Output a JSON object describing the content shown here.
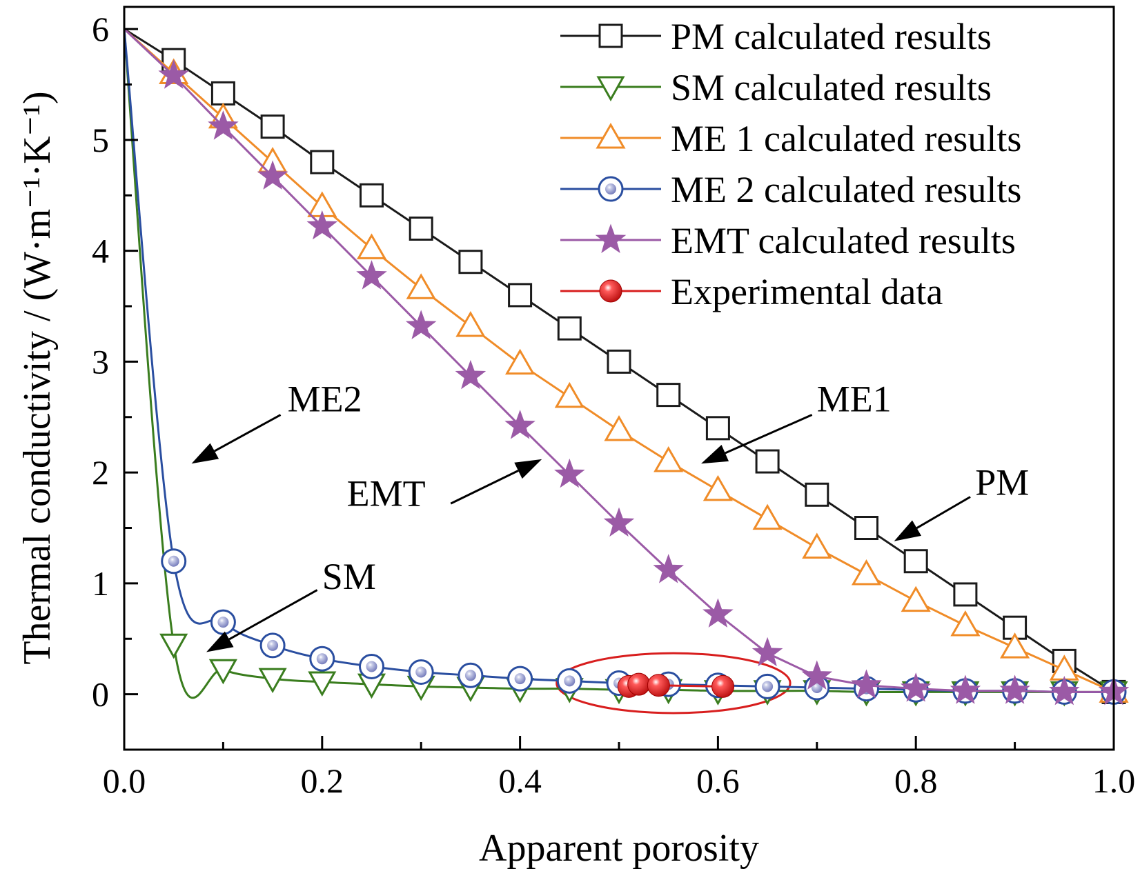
{
  "chart_data": {
    "type": "line",
    "title": "",
    "xlabel": "Apparent porosity",
    "ylabel": "Thermal conductivity / (W·m⁻¹·K⁻¹)",
    "xlim": [
      0.0,
      1.0
    ],
    "ylim": [
      -0.5,
      6.2
    ],
    "x_ticks": [
      0.0,
      0.2,
      0.4,
      0.6,
      0.8,
      1.0
    ],
    "x_tick_labels": [
      "0.0",
      "0.2",
      "0.4",
      "0.6",
      "0.8",
      "1.0"
    ],
    "x_minor_ticks": [
      0.1,
      0.3,
      0.5,
      0.7,
      0.9
    ],
    "y_ticks": [
      0,
      1,
      2,
      3,
      4,
      5,
      6
    ],
    "y_tick_labels": [
      "0",
      "1",
      "2",
      "3",
      "4",
      "5",
      "6"
    ],
    "y_minor_ticks": [
      0.5,
      1.5,
      2.5,
      3.5,
      4.5,
      5.5
    ],
    "grid": false,
    "legend_position": "top-right",
    "series": [
      {
        "name": "PM calculated results",
        "color": "#1a1a1a",
        "marker": "square",
        "x": [
          0.0,
          0.05,
          0.1,
          0.15,
          0.2,
          0.25,
          0.3,
          0.35,
          0.4,
          0.45,
          0.5,
          0.55,
          0.6,
          0.65,
          0.7,
          0.75,
          0.8,
          0.85,
          0.9,
          0.95,
          1.0
        ],
        "y": [
          6.0,
          5.72,
          5.42,
          5.12,
          4.8,
          4.5,
          4.2,
          3.9,
          3.6,
          3.3,
          3.0,
          2.7,
          2.4,
          2.1,
          1.8,
          1.5,
          1.2,
          0.9,
          0.6,
          0.3,
          0.02
        ]
      },
      {
        "name": "SM calculated results",
        "color": "#3a7d1e",
        "marker": "triangle-down",
        "x": [
          0.0,
          0.05,
          0.1,
          0.15,
          0.2,
          0.25,
          0.3,
          0.35,
          0.4,
          0.45,
          0.5,
          0.55,
          0.6,
          0.65,
          0.7,
          0.75,
          0.8,
          0.85,
          0.9,
          0.95,
          1.0
        ],
        "y": [
          6.0,
          0.45,
          0.22,
          0.14,
          0.11,
          0.09,
          0.07,
          0.06,
          0.05,
          0.05,
          0.04,
          0.04,
          0.03,
          0.03,
          0.03,
          0.02,
          0.02,
          0.02,
          0.02,
          0.02,
          0.02
        ]
      },
      {
        "name": "ME 1 calculated results",
        "color": "#f08c28",
        "marker": "triangle-up",
        "x": [
          0.0,
          0.05,
          0.1,
          0.15,
          0.2,
          0.25,
          0.3,
          0.35,
          0.4,
          0.45,
          0.5,
          0.55,
          0.6,
          0.65,
          0.7,
          0.75,
          0.8,
          0.85,
          0.9,
          0.95,
          1.0
        ],
        "y": [
          6.0,
          5.6,
          5.2,
          4.8,
          4.4,
          4.02,
          3.66,
          3.32,
          2.98,
          2.68,
          2.38,
          2.1,
          1.84,
          1.58,
          1.32,
          1.08,
          0.84,
          0.62,
          0.42,
          0.22,
          0.02
        ]
      },
      {
        "name": "ME 2 calculated results",
        "color": "#2a4ea0",
        "marker": "circle",
        "x": [
          0.0,
          0.05,
          0.1,
          0.15,
          0.2,
          0.25,
          0.3,
          0.35,
          0.4,
          0.45,
          0.5,
          0.55,
          0.6,
          0.65,
          0.7,
          0.75,
          0.8,
          0.85,
          0.9,
          0.95,
          1.0
        ],
        "y": [
          6.0,
          1.2,
          0.65,
          0.44,
          0.32,
          0.25,
          0.2,
          0.17,
          0.14,
          0.12,
          0.1,
          0.09,
          0.08,
          0.07,
          0.06,
          0.05,
          0.04,
          0.03,
          0.03,
          0.02,
          0.02
        ]
      },
      {
        "name": "EMT calculated results",
        "color": "#9b5aa6",
        "marker": "star",
        "x": [
          0.0,
          0.05,
          0.1,
          0.15,
          0.2,
          0.25,
          0.3,
          0.35,
          0.4,
          0.45,
          0.5,
          0.55,
          0.6,
          0.65,
          0.7,
          0.75,
          0.8,
          0.85,
          0.9,
          0.95,
          1.0
        ],
        "y": [
          6.0,
          5.58,
          5.12,
          4.67,
          4.22,
          3.77,
          3.32,
          2.87,
          2.42,
          1.98,
          1.54,
          1.12,
          0.72,
          0.37,
          0.16,
          0.08,
          0.05,
          0.03,
          0.03,
          0.02,
          0.02
        ]
      },
      {
        "name": "Experimental data",
        "color": "#d81e1e",
        "marker": "ball",
        "x": [
          0.51,
          0.52,
          0.54,
          0.605
        ],
        "y": [
          0.07,
          0.09,
          0.08,
          0.07
        ]
      }
    ],
    "annotations": [
      {
        "text": "ME2",
        "x": 0.165,
        "y": 2.55,
        "arrow_from": [
          0.158,
          2.52
        ],
        "arrow_to": [
          0.068,
          2.08
        ]
      },
      {
        "text": "SM",
        "x": 0.2,
        "y": 0.95,
        "arrow_from": [
          0.195,
          0.94
        ],
        "arrow_to": [
          0.083,
          0.38
        ]
      },
      {
        "text": "EMT",
        "x": 0.225,
        "y": 1.7,
        "arrow_from": [
          0.33,
          1.72
        ],
        "arrow_to": [
          0.422,
          2.12
        ]
      },
      {
        "text": "ME1",
        "x": 0.7,
        "y": 2.55,
        "arrow_from": [
          0.695,
          2.52
        ],
        "arrow_to": [
          0.583,
          2.08
        ]
      },
      {
        "text": "PM",
        "x": 0.86,
        "y": 1.8,
        "arrow_from": [
          0.855,
          1.78
        ],
        "arrow_to": [
          0.778,
          1.38
        ]
      }
    ],
    "highlight_ellipse": {
      "cx": 0.555,
      "cy": 0.1,
      "rx": 0.118,
      "ry": 0.27,
      "color": "#d81e1e"
    }
  }
}
